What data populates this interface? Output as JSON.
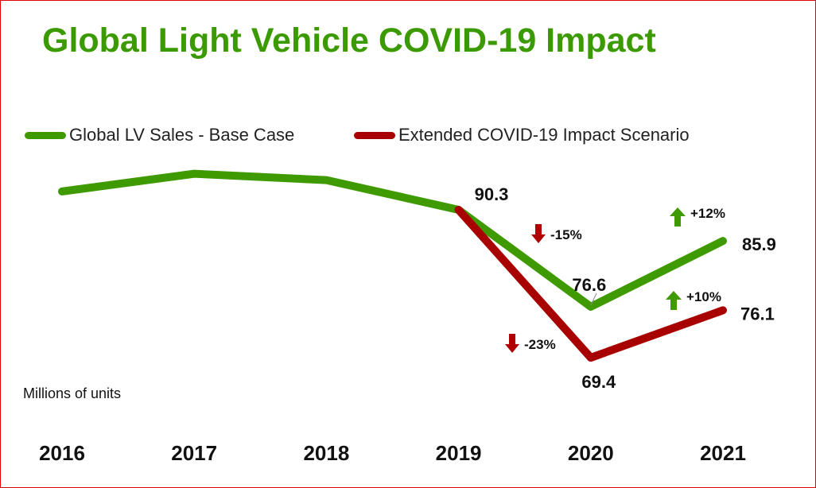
{
  "chart_data": {
    "type": "line",
    "title": "Global Light Vehicle COVID-19 Impact",
    "ylabel": "Millions of units",
    "xlabel": "",
    "categories": [
      "2016",
      "2017",
      "2018",
      "2019",
      "2020",
      "2021"
    ],
    "ylim": [
      60,
      100
    ],
    "grid": false,
    "legend_placement": "top-left",
    "series": [
      {
        "name": "Global LV Sales - Base Case",
        "color": "#3f9a00",
        "values": [
          92.9,
          95.4,
          94.5,
          90.3,
          76.6,
          85.9
        ]
      },
      {
        "name": "Extended COVID-19 Impact Scenario",
        "color": "#a80000",
        "values": [
          null,
          null,
          null,
          90.3,
          69.4,
          76.1
        ]
      }
    ],
    "data_labels": [
      {
        "series": 0,
        "index": 3,
        "text": "90.3"
      },
      {
        "series": 0,
        "index": 4,
        "text": "76.6"
      },
      {
        "series": 0,
        "index": 5,
        "text": "85.9"
      },
      {
        "series": 1,
        "index": 4,
        "text": "69.4"
      },
      {
        "series": 1,
        "index": 5,
        "text": "76.1"
      }
    ],
    "annotations": [
      {
        "text": "-15%",
        "direction": "down",
        "color": "#b00000"
      },
      {
        "text": "-23%",
        "direction": "down",
        "color": "#b00000"
      },
      {
        "text": "+12%",
        "direction": "up",
        "color": "#3f9a00"
      },
      {
        "text": "+10%",
        "direction": "up",
        "color": "#3f9a00"
      }
    ]
  }
}
